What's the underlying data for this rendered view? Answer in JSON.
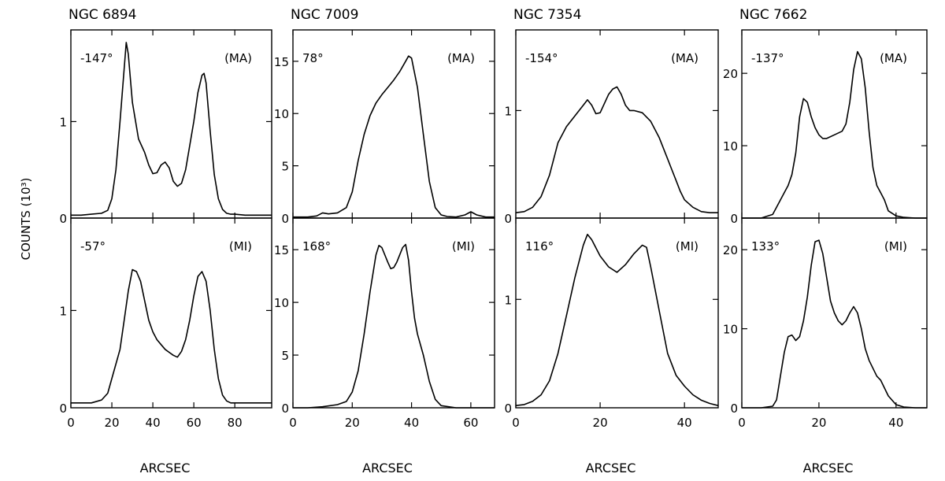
{
  "y_axis_label": "COUNTS (10³)",
  "chart_data": [
    {
      "type": "line",
      "title": "NGC 6894",
      "xlabel": "ARCSEC",
      "xlim": [
        0,
        98
      ],
      "x_ticks": [
        "0",
        "20",
        "40",
        "60",
        "80"
      ],
      "x_tick_values": [
        0,
        20,
        40,
        60,
        80
      ],
      "panels": [
        {
          "position_angle": "-147°",
          "axis": "(MA)",
          "ylim": [
            0,
            1.95
          ],
          "y_ticks": [
            "0",
            "1"
          ],
          "y_tick_values": [
            0,
            1
          ],
          "x": [
            0,
            5,
            10,
            15,
            18,
            20,
            22,
            24,
            26,
            27,
            28,
            30,
            33,
            36,
            38,
            40,
            42,
            44,
            46,
            48,
            50,
            52,
            54,
            56,
            58,
            60,
            62,
            64,
            65,
            66,
            68,
            70,
            72,
            74,
            76,
            78,
            80,
            85,
            90,
            95,
            98
          ],
          "y": [
            0.03,
            0.03,
            0.04,
            0.05,
            0.08,
            0.2,
            0.5,
            1.0,
            1.55,
            1.82,
            1.7,
            1.2,
            0.82,
            0.68,
            0.55,
            0.46,
            0.47,
            0.55,
            0.58,
            0.52,
            0.38,
            0.33,
            0.36,
            0.5,
            0.75,
            1.0,
            1.3,
            1.48,
            1.5,
            1.4,
            0.9,
            0.45,
            0.2,
            0.09,
            0.05,
            0.04,
            0.04,
            0.03,
            0.03,
            0.03,
            0.03
          ]
        },
        {
          "position_angle": "-57°",
          "axis": "(MI)",
          "ylim": [
            0,
            1.95
          ],
          "y_ticks": [
            "0",
            "1"
          ],
          "y_tick_values": [
            0,
            1
          ],
          "x": [
            0,
            5,
            10,
            15,
            18,
            20,
            22,
            24,
            26,
            28,
            30,
            32,
            34,
            36,
            38,
            40,
            42,
            44,
            46,
            48,
            50,
            52,
            54,
            56,
            58,
            60,
            62,
            64,
            66,
            68,
            70,
            72,
            74,
            76,
            78,
            80,
            85,
            90,
            95,
            98
          ],
          "y": [
            0.05,
            0.05,
            0.05,
            0.08,
            0.15,
            0.3,
            0.45,
            0.6,
            0.9,
            1.2,
            1.42,
            1.4,
            1.3,
            1.1,
            0.9,
            0.78,
            0.7,
            0.65,
            0.6,
            0.57,
            0.54,
            0.52,
            0.58,
            0.7,
            0.9,
            1.15,
            1.35,
            1.4,
            1.3,
            1.0,
            0.6,
            0.3,
            0.13,
            0.07,
            0.05,
            0.05,
            0.05,
            0.05,
            0.05,
            0.05
          ]
        }
      ]
    },
    {
      "type": "line",
      "title": "NGC 7009",
      "xlabel": "ARCSEC",
      "xlim": [
        0,
        68
      ],
      "x_ticks": [
        "0",
        "20",
        "40",
        "60"
      ],
      "x_tick_values": [
        0,
        20,
        40,
        60
      ],
      "panels": [
        {
          "position_angle": "78°",
          "axis": "(MA)",
          "ylim": [
            0,
            18
          ],
          "y_ticks": [
            "0",
            "5",
            "10",
            "15"
          ],
          "y_tick_values": [
            0,
            5,
            10,
            15
          ],
          "x": [
            0,
            5,
            8,
            10,
            12,
            15,
            18,
            20,
            22,
            24,
            26,
            28,
            30,
            32,
            34,
            36,
            38,
            39,
            40,
            42,
            44,
            46,
            48,
            50,
            52,
            55,
            58,
            60,
            62,
            65,
            68
          ],
          "y": [
            0.1,
            0.1,
            0.2,
            0.5,
            0.4,
            0.5,
            1.0,
            2.5,
            5.5,
            8.0,
            9.8,
            11.0,
            11.8,
            12.5,
            13.2,
            14.0,
            15.0,
            15.5,
            15.3,
            12.5,
            8.0,
            3.5,
            1.0,
            0.3,
            0.15,
            0.1,
            0.3,
            0.6,
            0.3,
            0.1,
            0.1
          ]
        },
        {
          "position_angle": "168°",
          "axis": "(MI)",
          "ylim": [
            0,
            18
          ],
          "y_ticks": [
            "0",
            "5",
            "10",
            "15"
          ],
          "y_tick_values": [
            0,
            5,
            10,
            15
          ],
          "x": [
            0,
            5,
            10,
            15,
            18,
            20,
            22,
            24,
            26,
            28,
            29,
            30,
            32,
            33,
            34,
            35,
            36,
            37,
            38,
            39,
            40,
            41,
            42,
            44,
            46,
            48,
            50,
            55,
            60,
            65,
            68
          ],
          "y": [
            0.0,
            0.0,
            0.1,
            0.3,
            0.6,
            1.5,
            3.5,
            7.0,
            11.0,
            14.5,
            15.4,
            15.2,
            13.8,
            13.2,
            13.3,
            13.8,
            14.5,
            15.2,
            15.5,
            14.0,
            11.0,
            8.5,
            7.0,
            5.0,
            2.5,
            0.8,
            0.2,
            0.0,
            0.0,
            0.0,
            0.0
          ]
        }
      ]
    },
    {
      "type": "line",
      "title": "NGC 7354",
      "xlabel": "ARCSEC",
      "xlim": [
        0,
        48
      ],
      "x_ticks": [
        "0",
        "20",
        "40"
      ],
      "x_tick_values": [
        0,
        20,
        40
      ],
      "panels": [
        {
          "position_angle": "-154°",
          "axis": "(MA)",
          "ylim": [
            0,
            1.75
          ],
          "y_ticks": [
            "0",
            "1"
          ],
          "y_tick_values": [
            0,
            1
          ],
          "x": [
            0,
            2,
            4,
            6,
            8,
            10,
            12,
            14,
            16,
            17,
            18,
            19,
            20,
            22,
            23,
            24,
            25,
            26,
            27,
            28,
            30,
            32,
            34,
            36,
            37,
            38,
            39,
            40,
            42,
            44,
            46,
            48
          ],
          "y": [
            0.05,
            0.06,
            0.1,
            0.2,
            0.4,
            0.7,
            0.85,
            0.95,
            1.05,
            1.1,
            1.05,
            0.97,
            0.98,
            1.15,
            1.2,
            1.22,
            1.15,
            1.05,
            1.0,
            1.0,
            0.98,
            0.9,
            0.75,
            0.55,
            0.45,
            0.35,
            0.25,
            0.17,
            0.1,
            0.06,
            0.05,
            0.05
          ]
        },
        {
          "position_angle": "116°",
          "axis": "(MI)",
          "ylim": [
            0,
            1.75
          ],
          "y_ticks": [
            "0",
            "1"
          ],
          "y_tick_values": [
            0,
            1
          ],
          "x": [
            0,
            2,
            4,
            6,
            8,
            10,
            12,
            14,
            16,
            17,
            18,
            20,
            22,
            24,
            26,
            28,
            30,
            31,
            32,
            34,
            36,
            38,
            40,
            42,
            44,
            46,
            48
          ],
          "y": [
            0.02,
            0.03,
            0.06,
            0.12,
            0.25,
            0.5,
            0.85,
            1.2,
            1.5,
            1.6,
            1.55,
            1.4,
            1.3,
            1.25,
            1.32,
            1.42,
            1.5,
            1.48,
            1.3,
            0.9,
            0.5,
            0.3,
            0.2,
            0.12,
            0.07,
            0.04,
            0.02
          ]
        }
      ]
    },
    {
      "type": "line",
      "title": "NGC 7662",
      "xlabel": "ARCSEC",
      "xlim": [
        0,
        48
      ],
      "x_ticks": [
        "0",
        "20",
        "40"
      ],
      "x_tick_values": [
        0,
        20,
        40
      ],
      "panels": [
        {
          "position_angle": "-137°",
          "axis": "(MA)",
          "ylim": [
            0,
            26
          ],
          "y_ticks": [
            "0",
            "10",
            "20"
          ],
          "y_tick_values": [
            0,
            10,
            20
          ],
          "x": [
            0,
            5,
            8,
            9,
            10,
            11,
            12,
            13,
            14,
            15,
            16,
            17,
            18,
            19,
            20,
            21,
            22,
            24,
            26,
            27,
            28,
            29,
            30,
            31,
            32,
            33,
            34,
            35,
            36,
            37,
            38,
            40,
            42,
            45,
            48
          ],
          "y": [
            0,
            0,
            0.5,
            1.5,
            2.5,
            3.5,
            4.5,
            6.0,
            9.0,
            14.0,
            16.5,
            16.0,
            14.0,
            12.5,
            11.5,
            11.0,
            11.0,
            11.5,
            12.0,
            13.0,
            16.0,
            20.5,
            23.0,
            22.0,
            18.0,
            12.0,
            7.0,
            4.5,
            3.5,
            2.5,
            1.0,
            0.3,
            0.1,
            0,
            0
          ]
        },
        {
          "position_angle": "133°",
          "axis": "(MI)",
          "ylim": [
            0,
            24
          ],
          "y_ticks": [
            "0",
            "10",
            "20"
          ],
          "y_tick_values": [
            0,
            10,
            20
          ],
          "x": [
            0,
            5,
            8,
            9,
            10,
            11,
            12,
            13,
            14,
            15,
            16,
            17,
            18,
            19,
            20,
            21,
            22,
            23,
            24,
            25,
            26,
            27,
            28,
            29,
            30,
            31,
            32,
            33,
            34,
            35,
            36,
            38,
            40,
            42,
            45,
            48
          ],
          "y": [
            0,
            0,
            0.2,
            1.0,
            4.0,
            7.0,
            9.0,
            9.2,
            8.5,
            9.0,
            11.0,
            14.0,
            18.0,
            21.0,
            21.2,
            19.5,
            16.5,
            13.5,
            12.0,
            11.0,
            10.5,
            11.0,
            12.0,
            12.8,
            12.0,
            10.0,
            7.5,
            6.0,
            5.0,
            4.0,
            3.5,
            1.5,
            0.4,
            0.1,
            0,
            0
          ]
        }
      ]
    }
  ]
}
